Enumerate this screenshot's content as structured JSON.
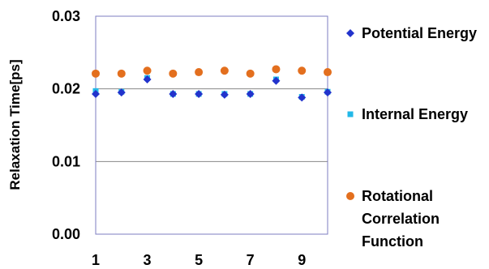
{
  "chart_data": {
    "type": "scatter",
    "title": "",
    "xlabel": "",
    "ylabel": "Relaxation Time[ps]",
    "xlim": [
      1,
      10
    ],
    "ylim": [
      0,
      0.03
    ],
    "x_ticks": [
      "1",
      "3",
      "5",
      "7",
      "9"
    ],
    "y_ticks": [
      "0.00",
      "0.01",
      "0.02",
      "0.03"
    ],
    "x_tick_values": [
      1,
      3,
      5,
      7,
      9
    ],
    "y_tick_values": [
      0,
      0.01,
      0.02,
      0.03
    ],
    "grid": "horizontal",
    "legend_position": "right",
    "series": [
      {
        "name": "Potential Energy",
        "marker": "diamond",
        "color": "#2233cc",
        "x": [
          1,
          2,
          3,
          4,
          5,
          6,
          7,
          8,
          9,
          10
        ],
        "values": [
          0.0193,
          0.0195,
          0.0213,
          0.0193,
          0.0193,
          0.0192,
          0.0193,
          0.0211,
          0.0188,
          0.0195
        ]
      },
      {
        "name": "Internal Energy",
        "marker": "square",
        "color": "#22b8e8",
        "x": [
          1,
          2,
          3,
          4,
          5,
          6,
          7,
          8,
          9,
          10
        ],
        "values": [
          0.0197,
          0.0196,
          0.0215,
          0.0193,
          0.0193,
          0.0193,
          0.0193,
          0.0213,
          0.0189,
          0.0196
        ]
      },
      {
        "name": "Rotational Correlation Function",
        "legend_lines": [
          "Rotational",
          "Correlation",
          "Function"
        ],
        "marker": "circle",
        "color": "#e36f1e",
        "x": [
          1,
          2,
          3,
          4,
          5,
          6,
          7,
          8,
          9,
          10
        ],
        "values": [
          0.0221,
          0.0221,
          0.0225,
          0.0221,
          0.0223,
          0.0225,
          0.0221,
          0.0227,
          0.0225,
          0.0223
        ]
      }
    ]
  }
}
